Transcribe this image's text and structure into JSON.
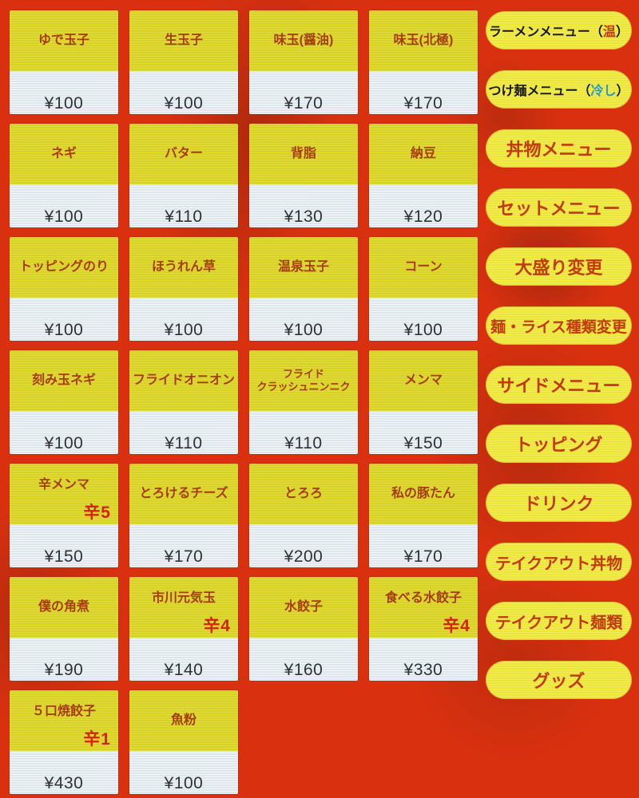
{
  "colors": {
    "background": "#d93110",
    "tile_yellow": "#d9d226",
    "tile_white": "#e4edf1",
    "item_text": "#a63c0e",
    "spice_text": "#d6220c",
    "price_text": "#2e3236",
    "sidebar_yellow": "#ece63a",
    "sidebar_red": "#c23a0c",
    "sidebar_black": "#161616",
    "sidebar_blue": "#1d9cd8"
  },
  "grid": {
    "items": [
      {
        "name": "ゆで玉子",
        "price": "¥100"
      },
      {
        "name": "生玉子",
        "price": "¥100"
      },
      {
        "name": "味玉(醤油)",
        "price": "¥170"
      },
      {
        "name": "味玉(北極)",
        "price": "¥170"
      },
      {
        "name": "ネギ",
        "price": "¥100"
      },
      {
        "name": "バター",
        "price": "¥110"
      },
      {
        "name": "背脂",
        "price": "¥130"
      },
      {
        "name": "納豆",
        "price": "¥120"
      },
      {
        "name": "トッピングのり",
        "price": "¥100"
      },
      {
        "name": "ほうれん草",
        "price": "¥100"
      },
      {
        "name": "温泉玉子",
        "price": "¥100"
      },
      {
        "name": "コーン",
        "price": "¥100"
      },
      {
        "name": "刻み玉ネギ",
        "price": "¥100"
      },
      {
        "name": "フライドオニオン",
        "price": "¥110"
      },
      {
        "name": "フライド",
        "name2": "クラッシュニンニク",
        "price": "¥110"
      },
      {
        "name": "メンマ",
        "price": "¥150"
      },
      {
        "name": "辛メンマ",
        "spice": "辛5",
        "price": "¥150"
      },
      {
        "name": "とろけるチーズ",
        "price": "¥170"
      },
      {
        "name": "とろろ",
        "price": "¥200"
      },
      {
        "name": "私の豚たん",
        "price": "¥170"
      },
      {
        "name": "僕の角煮",
        "price": "¥190"
      },
      {
        "name": "市川元気玉",
        "spice": "辛4",
        "price": "¥140"
      },
      {
        "name": "水餃子",
        "price": "¥160"
      },
      {
        "name": "食べる水餃子",
        "spice": "辛4",
        "price": "¥330"
      },
      {
        "name": "５口焼餃子",
        "spice": "辛1",
        "price": "¥430"
      },
      {
        "name": "魚粉",
        "price": "¥100"
      }
    ]
  },
  "sidebar": {
    "buttons": [
      {
        "label": "ラーメンメニュー（温）",
        "parts": [
          {
            "text": "ラーメンメニュー（",
            "color": "black"
          },
          {
            "text": "温",
            "color": "red"
          },
          {
            "text": "）",
            "color": "black"
          }
        ]
      },
      {
        "label": "つけ麺メニュー（冷し）",
        "parts": [
          {
            "text": "つけ麺メニュー（",
            "color": "black"
          },
          {
            "text": "冷し",
            "color": "blue"
          },
          {
            "text": "）",
            "color": "black"
          }
        ]
      },
      {
        "label": "丼物メニュー",
        "parts": [
          {
            "text": "丼物メニュー",
            "color": "red"
          }
        ]
      },
      {
        "label": "セットメニュー",
        "parts": [
          {
            "text": "セットメニュー",
            "color": "red"
          }
        ]
      },
      {
        "label": "大盛り変更",
        "parts": [
          {
            "text": "大盛り変更",
            "color": "red"
          }
        ]
      },
      {
        "label": "麺・ライス種類変更",
        "parts": [
          {
            "text": "麺・ライス種類変更",
            "color": "red"
          }
        ]
      },
      {
        "label": "サイドメニュー",
        "parts": [
          {
            "text": "サイドメニュー",
            "color": "red"
          }
        ]
      },
      {
        "label": "トッピング",
        "parts": [
          {
            "text": "トッピング",
            "color": "red"
          }
        ]
      },
      {
        "label": "ドリンク",
        "parts": [
          {
            "text": "ドリンク",
            "color": "red"
          }
        ]
      },
      {
        "label": "テイクアウト丼物",
        "parts": [
          {
            "text": "テイクアウト丼物",
            "color": "red"
          }
        ]
      },
      {
        "label": "テイクアウト麺類",
        "parts": [
          {
            "text": "テイクアウト麺類",
            "color": "red"
          }
        ]
      },
      {
        "label": "グッズ",
        "parts": [
          {
            "text": "グッズ",
            "color": "red"
          }
        ]
      }
    ]
  }
}
